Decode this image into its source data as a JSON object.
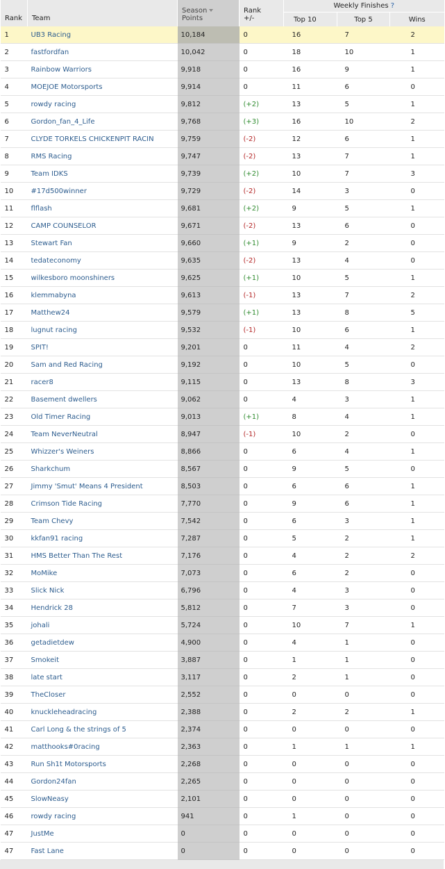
{
  "headers": {
    "rank": "Rank",
    "team": "Team",
    "season": "Season",
    "points": "Points",
    "rank_label": "Rank",
    "rank_change": "+/-",
    "weekly_finishes": "Weekly Finishes",
    "help": "?",
    "top10": "Top 10",
    "top5": "Top 5",
    "wins": "Wins"
  },
  "colors": {
    "positive": "#2e8b2e",
    "negative": "#b22222",
    "team_link": "#2c5c8e",
    "highlight_row": "#fdf7c8",
    "points_column": "#cfcfcf"
  },
  "rows": [
    {
      "rank": "1",
      "team": "UB3 Racing",
      "points": "10,184",
      "change": "0",
      "top10": "16",
      "top5": "7",
      "wins": "2",
      "highlight": true
    },
    {
      "rank": "2",
      "team": "fastfordfan",
      "points": "10,042",
      "change": "0",
      "top10": "18",
      "top5": "10",
      "wins": "1"
    },
    {
      "rank": "3",
      "team": "Rainbow Warriors",
      "points": "9,918",
      "change": "0",
      "top10": "16",
      "top5": "9",
      "wins": "1"
    },
    {
      "rank": "4",
      "team": "MOEJOE Motorsports",
      "points": "9,914",
      "change": "0",
      "top10": "11",
      "top5": "6",
      "wins": "0"
    },
    {
      "rank": "5",
      "team": "rowdy racing",
      "points": "9,812",
      "change": "(+2)",
      "top10": "13",
      "top5": "5",
      "wins": "1"
    },
    {
      "rank": "6",
      "team": "Gordon_fan_4_Life",
      "points": "9,768",
      "change": "(+3)",
      "top10": "16",
      "top5": "10",
      "wins": "2"
    },
    {
      "rank": "7",
      "team": "CLYDE TORKELS CHICKENPIT RACIN",
      "points": "9,759",
      "change": "(-2)",
      "top10": "12",
      "top5": "6",
      "wins": "1"
    },
    {
      "rank": "8",
      "team": "RMS Racing",
      "points": "9,747",
      "change": "(-2)",
      "top10": "13",
      "top5": "7",
      "wins": "1"
    },
    {
      "rank": "9",
      "team": "Team IDKS",
      "points": "9,739",
      "change": "(+2)",
      "top10": "10",
      "top5": "7",
      "wins": "3"
    },
    {
      "rank": "10",
      "team": "#17d500winner",
      "points": "9,729",
      "change": "(-2)",
      "top10": "14",
      "top5": "3",
      "wins": "0"
    },
    {
      "rank": "11",
      "team": "flflash",
      "points": "9,681",
      "change": "(+2)",
      "top10": "9",
      "top5": "5",
      "wins": "1"
    },
    {
      "rank": "12",
      "team": "CAMP COUNSELOR",
      "points": "9,671",
      "change": "(-2)",
      "top10": "13",
      "top5": "6",
      "wins": "0"
    },
    {
      "rank": "13",
      "team": "Stewart Fan",
      "points": "9,660",
      "change": "(+1)",
      "top10": "9",
      "top5": "2",
      "wins": "0"
    },
    {
      "rank": "14",
      "team": "tedateconomy",
      "points": "9,635",
      "change": "(-2)",
      "top10": "13",
      "top5": "4",
      "wins": "0"
    },
    {
      "rank": "15",
      "team": "wilkesboro moonshiners",
      "points": "9,625",
      "change": "(+1)",
      "top10": "10",
      "top5": "5",
      "wins": "1"
    },
    {
      "rank": "16",
      "team": "klemmabyna",
      "points": "9,613",
      "change": "(-1)",
      "top10": "13",
      "top5": "7",
      "wins": "2"
    },
    {
      "rank": "17",
      "team": "Matthew24",
      "points": "9,579",
      "change": "(+1)",
      "top10": "13",
      "top5": "8",
      "wins": "5"
    },
    {
      "rank": "18",
      "team": "lugnut racing",
      "points": "9,532",
      "change": "(-1)",
      "top10": "10",
      "top5": "6",
      "wins": "1"
    },
    {
      "rank": "19",
      "team": "SPIT!",
      "points": "9,201",
      "change": "0",
      "top10": "11",
      "top5": "4",
      "wins": "2"
    },
    {
      "rank": "20",
      "team": "Sam and Red Racing",
      "points": "9,192",
      "change": "0",
      "top10": "10",
      "top5": "5",
      "wins": "0"
    },
    {
      "rank": "21",
      "team": "racer8",
      "points": "9,115",
      "change": "0",
      "top10": "13",
      "top5": "8",
      "wins": "3"
    },
    {
      "rank": "22",
      "team": "Basement dwellers",
      "points": "9,062",
      "change": "0",
      "top10": "4",
      "top5": "3",
      "wins": "1"
    },
    {
      "rank": "23",
      "team": "Old Timer Racing",
      "points": "9,013",
      "change": "(+1)",
      "top10": "8",
      "top5": "4",
      "wins": "1"
    },
    {
      "rank": "24",
      "team": "Team NeverNeutral",
      "points": "8,947",
      "change": "(-1)",
      "top10": "10",
      "top5": "2",
      "wins": "0"
    },
    {
      "rank": "25",
      "team": "Whizzer's Weiners",
      "points": "8,866",
      "change": "0",
      "top10": "6",
      "top5": "4",
      "wins": "1"
    },
    {
      "rank": "26",
      "team": "Sharkchum",
      "points": "8,567",
      "change": "0",
      "top10": "9",
      "top5": "5",
      "wins": "0"
    },
    {
      "rank": "27",
      "team": "Jimmy 'Smut' Means 4 President",
      "points": "8,503",
      "change": "0",
      "top10": "6",
      "top5": "6",
      "wins": "1"
    },
    {
      "rank": "28",
      "team": "Crimson Tide Racing",
      "points": "7,770",
      "change": "0",
      "top10": "9",
      "top5": "6",
      "wins": "1"
    },
    {
      "rank": "29",
      "team": "Team Chevy",
      "points": "7,542",
      "change": "0",
      "top10": "6",
      "top5": "3",
      "wins": "1"
    },
    {
      "rank": "30",
      "team": "kkfan91 racing",
      "points": "7,287",
      "change": "0",
      "top10": "5",
      "top5": "2",
      "wins": "1"
    },
    {
      "rank": "31",
      "team": "HMS Better Than The Rest",
      "points": "7,176",
      "change": "0",
      "top10": "4",
      "top5": "2",
      "wins": "2"
    },
    {
      "rank": "32",
      "team": "MoMike",
      "points": "7,073",
      "change": "0",
      "top10": "6",
      "top5": "2",
      "wins": "0"
    },
    {
      "rank": "33",
      "team": "Slick Nick",
      "points": "6,796",
      "change": "0",
      "top10": "4",
      "top5": "3",
      "wins": "0"
    },
    {
      "rank": "34",
      "team": "Hendrick 28",
      "points": "5,812",
      "change": "0",
      "top10": "7",
      "top5": "3",
      "wins": "0"
    },
    {
      "rank": "35",
      "team": "johali",
      "points": "5,724",
      "change": "0",
      "top10": "10",
      "top5": "7",
      "wins": "1"
    },
    {
      "rank": "36",
      "team": "getadietdew",
      "points": "4,900",
      "change": "0",
      "top10": "4",
      "top5": "1",
      "wins": "0"
    },
    {
      "rank": "37",
      "team": "Smokeit",
      "points": "3,887",
      "change": "0",
      "top10": "1",
      "top5": "1",
      "wins": "0"
    },
    {
      "rank": "38",
      "team": "late start",
      "points": "3,117",
      "change": "0",
      "top10": "2",
      "top5": "1",
      "wins": "0"
    },
    {
      "rank": "39",
      "team": "TheCloser",
      "points": "2,552",
      "change": "0",
      "top10": "0",
      "top5": "0",
      "wins": "0"
    },
    {
      "rank": "40",
      "team": "knuckleheadracing",
      "points": "2,388",
      "change": "0",
      "top10": "2",
      "top5": "2",
      "wins": "1"
    },
    {
      "rank": "41",
      "team": "Carl Long & the strings of 5",
      "points": "2,374",
      "change": "0",
      "top10": "0",
      "top5": "0",
      "wins": "0"
    },
    {
      "rank": "42",
      "team": "matthooks#0racing",
      "points": "2,363",
      "change": "0",
      "top10": "1",
      "top5": "1",
      "wins": "1"
    },
    {
      "rank": "43",
      "team": "Run Sh1t Motorsports",
      "points": "2,268",
      "change": "0",
      "top10": "0",
      "top5": "0",
      "wins": "0"
    },
    {
      "rank": "44",
      "team": "Gordon24fan",
      "points": "2,265",
      "change": "0",
      "top10": "0",
      "top5": "0",
      "wins": "0"
    },
    {
      "rank": "45",
      "team": "SlowNeasy",
      "points": "2,101",
      "change": "0",
      "top10": "0",
      "top5": "0",
      "wins": "0"
    },
    {
      "rank": "46",
      "team": "rowdy racing",
      "points": "941",
      "change": "0",
      "top10": "1",
      "top5": "0",
      "wins": "0"
    },
    {
      "rank": "47",
      "team": "JustMe",
      "points": "0",
      "change": "0",
      "top10": "0",
      "top5": "0",
      "wins": "0"
    },
    {
      "rank": "47",
      "team": "Fast Lane",
      "points": "0",
      "change": "0",
      "top10": "0",
      "top5": "0",
      "wins": "0"
    }
  ]
}
